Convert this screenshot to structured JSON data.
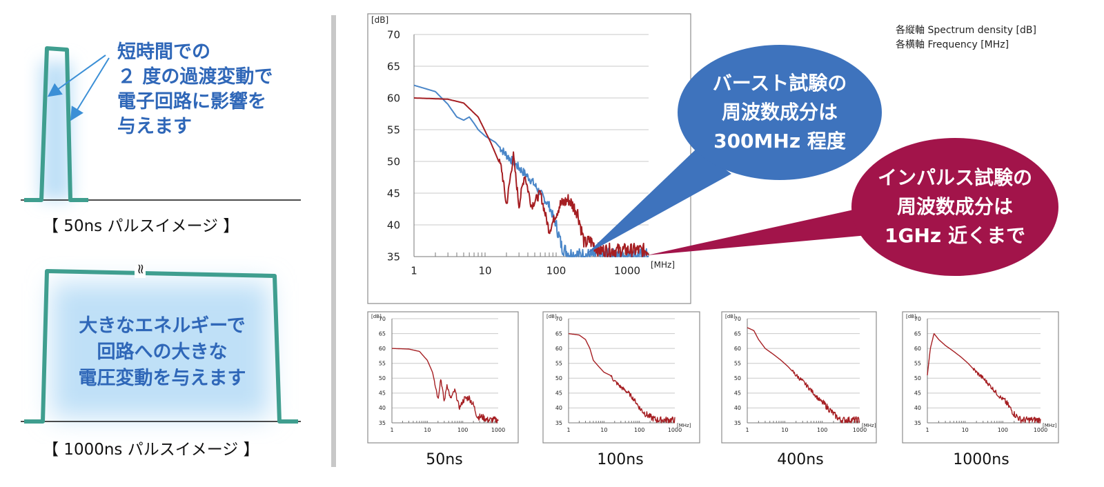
{
  "left_panel": {
    "short_pulse_text": [
      "短時間での",
      "２ 度の過渡変動で",
      "電子回路に影響を",
      "与えます"
    ],
    "short_pulse_caption": "【 50ns パルスイメージ 】",
    "long_pulse_text": [
      "大きなエネルギーで",
      "回路への大きな",
      "電圧変動を与えます"
    ],
    "long_pulse_caption": "【 1000ns パルスイメージ 】",
    "break_mark": "≈"
  },
  "legend_note": [
    "各縦軸 Spectrum density [dB]",
    "各横軸 Frequency [MHz]"
  ],
  "bubbles": {
    "burst": [
      "バースト試験の",
      "周波数成分は",
      "300MHz 程度"
    ],
    "impulse": [
      "インパルス試験の",
      "周波数成分は",
      "1GHz 近くまで"
    ]
  },
  "colors": {
    "pulse_green": "#3f9e8f",
    "glow_blue": "#bfe0f7",
    "text_blue": "#2f67b8",
    "burst_blue": "#3e73bd",
    "impulse_red": "#a2144a",
    "series_red": "#a51e22",
    "series_blue": "#4a86c8"
  },
  "chart_data": [
    {
      "type": "line",
      "ylabel": "[dB]",
      "xlabel": "[MHz]",
      "xscale": "log",
      "xlim": [
        1,
        2000
      ],
      "ylim": [
        35,
        70
      ],
      "yticks": [
        "70",
        "65",
        "60",
        "55",
        "50",
        "45",
        "40",
        "35"
      ],
      "xticks": [
        "1",
        "10",
        "100",
        "1000"
      ],
      "grid": "horizontal",
      "series": [
        {
          "color": "red",
          "x": [
            1,
            3,
            5,
            8,
            12,
            17,
            20,
            25,
            30,
            36,
            45,
            60,
            80,
            110,
            150,
            200,
            250,
            300,
            400,
            700,
            1000,
            2000
          ],
          "y": [
            60,
            59.8,
            59.2,
            57,
            53,
            49,
            43,
            51,
            43,
            48,
            43,
            45,
            39,
            43,
            44,
            42,
            37,
            37.5,
            36,
            36,
            36,
            36
          ]
        },
        {
          "color": "blue",
          "x": [
            1,
            2,
            3,
            4,
            5,
            6,
            7,
            8,
            10,
            14,
            20,
            30,
            45,
            60,
            80,
            100,
            120,
            150,
            200,
            300,
            1000,
            2000
          ],
          "y": [
            62,
            61,
            59,
            57,
            56.5,
            57,
            56,
            55,
            54,
            53,
            51,
            49,
            47,
            45,
            43,
            40,
            36.5,
            35.5,
            35.3,
            35.2,
            35.2,
            35.2
          ]
        }
      ]
    },
    {
      "type": "line",
      "label": "50ns",
      "ylabel": "[dB]",
      "xscale": "log",
      "xlim": [
        1,
        1000
      ],
      "ylim": [
        35,
        70
      ],
      "yticks": [
        "70",
        "65",
        "60",
        "55",
        "50",
        "45",
        "40",
        "35"
      ],
      "xticks": [
        "1",
        "10",
        "100",
        "1000"
      ],
      "series": [
        {
          "color": "red",
          "x": [
            1,
            3,
            6,
            10,
            14,
            18,
            20,
            24,
            30,
            36,
            45,
            60,
            80,
            110,
            150,
            200,
            260,
            350,
            500,
            1000
          ],
          "y": [
            60,
            59.8,
            59,
            56,
            52,
            46,
            43,
            50,
            42,
            48,
            43,
            46,
            40,
            43,
            43.5,
            41,
            37,
            37,
            36,
            36
          ]
        }
      ]
    },
    {
      "type": "line",
      "label": "100ns",
      "ylabel": "[dB]",
      "xlabel": "[MHz]",
      "xscale": "log",
      "xlim": [
        1,
        1000
      ],
      "ylim": [
        35,
        70
      ],
      "yticks": [
        "70",
        "65",
        "60",
        "55",
        "50",
        "45",
        "40",
        "35"
      ],
      "xticks": [
        "1",
        "10",
        "100",
        "1000"
      ],
      "series": [
        {
          "color": "red",
          "x": [
            1,
            2,
            3,
            4,
            5,
            7,
            10,
            15,
            20,
            30,
            50,
            80,
            100,
            150,
            200,
            300,
            1000
          ],
          "y": [
            65,
            64.5,
            63,
            60,
            56,
            54,
            52,
            51,
            49,
            47,
            45,
            42,
            40,
            38,
            37,
            36,
            36
          ]
        }
      ]
    },
    {
      "type": "line",
      "label": "400ns",
      "ylabel": "[dB]",
      "xlabel": "[MHz]",
      "xscale": "log",
      "xlim": [
        1,
        1000
      ],
      "ylim": [
        35,
        70
      ],
      "yticks": [
        "70",
        "65",
        "60",
        "55",
        "50",
        "45",
        "40",
        "35"
      ],
      "xticks": [
        "1",
        "10",
        "100",
        "1000"
      ],
      "series": [
        {
          "color": "red",
          "x": [
            1,
            1.5,
            2,
            3,
            5,
            8,
            12,
            20,
            30,
            50,
            80,
            120,
            200,
            300,
            1000
          ],
          "y": [
            67,
            66,
            63,
            60,
            58,
            56,
            54,
            51,
            49,
            46,
            43,
            41,
            38,
            36,
            36
          ]
        }
      ]
    },
    {
      "type": "line",
      "label": "1000ns",
      "ylabel": "[dB]",
      "xlabel": "[MHz]",
      "xscale": "log",
      "xlim": [
        1,
        1000
      ],
      "ylim": [
        35,
        70
      ],
      "yticks": [
        "70",
        "65",
        "60",
        "55",
        "50",
        "45",
        "40",
        "35"
      ],
      "xticks": [
        "1",
        "10",
        "100",
        "1000"
      ],
      "series": [
        {
          "color": "red",
          "x": [
            1,
            1.2,
            1.5,
            2,
            3,
            5,
            8,
            12,
            20,
            30,
            50,
            80,
            120,
            200,
            300,
            1000
          ],
          "y": [
            51,
            60,
            65,
            63,
            61,
            59,
            57,
            55,
            52,
            50,
            47,
            44,
            42,
            38,
            36,
            36
          ]
        }
      ]
    }
  ]
}
